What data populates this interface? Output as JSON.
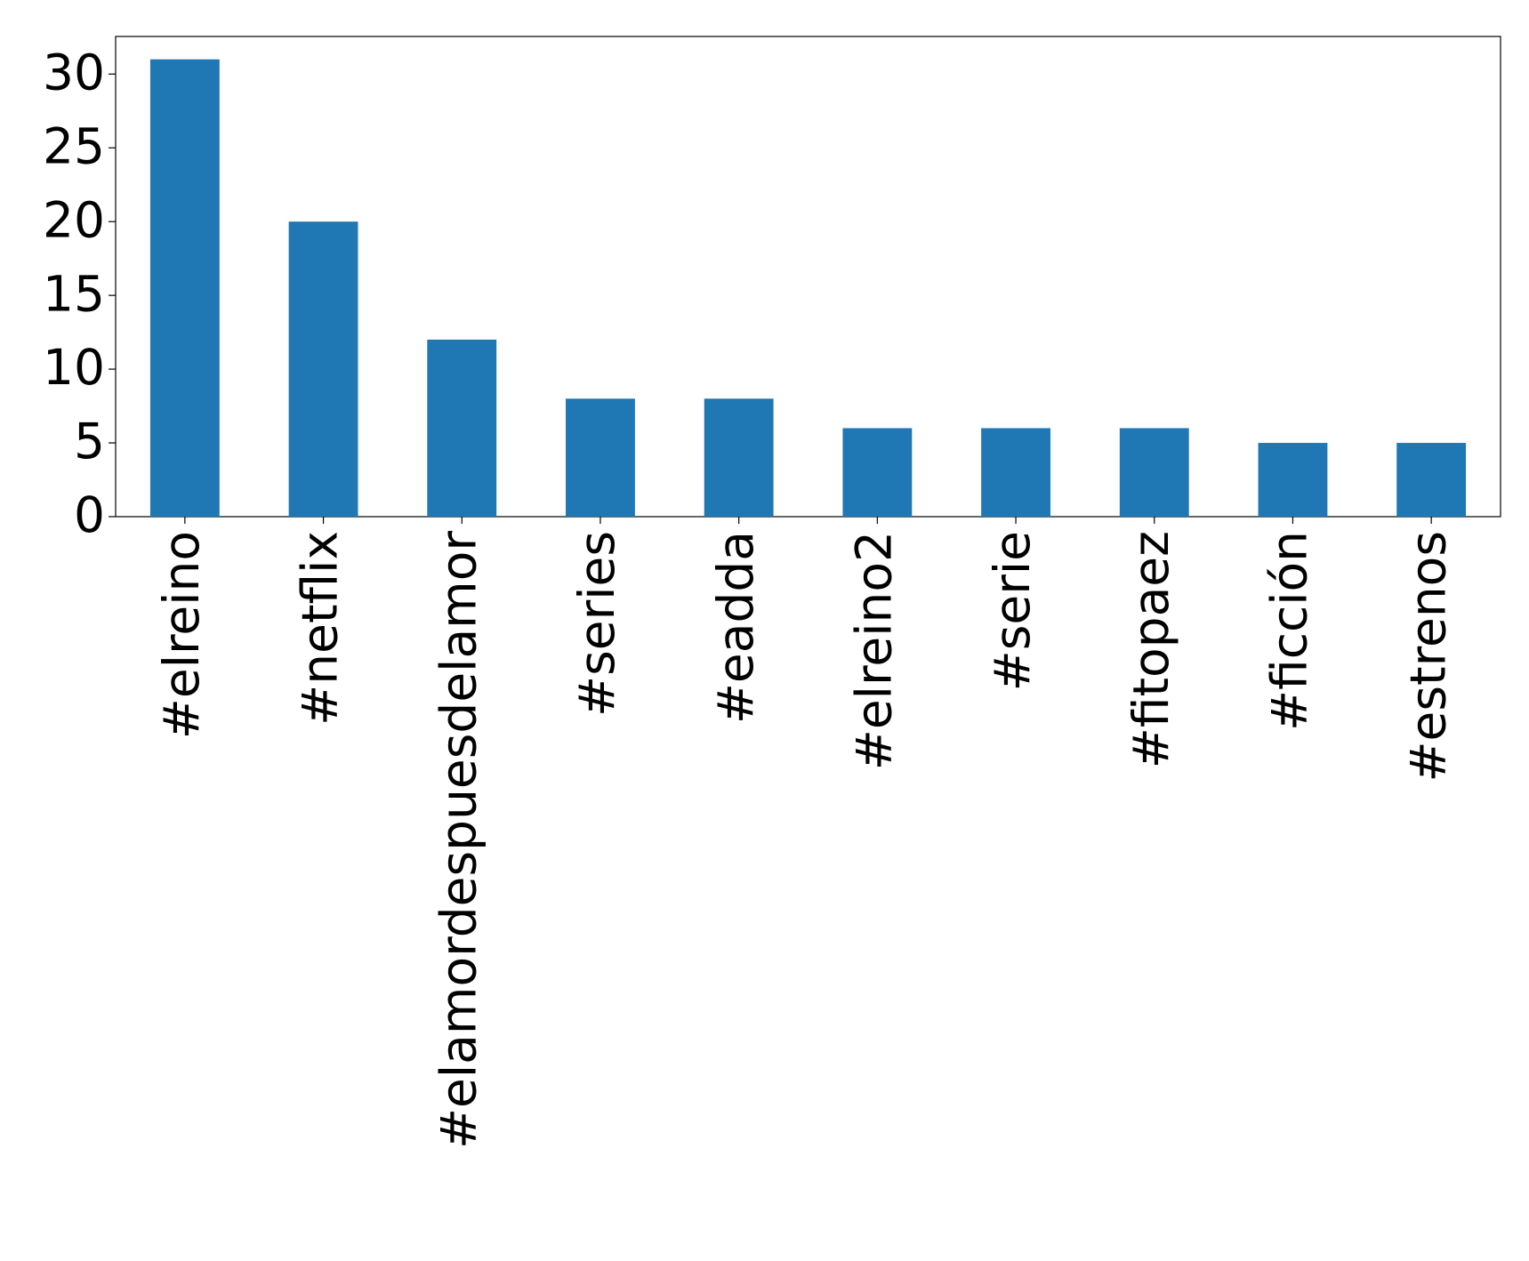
{
  "chart_data": {
    "type": "bar",
    "categories": [
      "#elreino",
      "#netflix",
      "#elamordespuesdelamor",
      "#series",
      "#eadda",
      "#elreino2",
      "#serie",
      "#fitopaez",
      "#ficción",
      "#estrenos"
    ],
    "values": [
      31,
      20,
      12,
      8,
      8,
      6,
      6,
      6,
      5,
      5
    ],
    "color": "#1f77b4",
    "ylim": [
      0,
      32.55
    ],
    "yticks": [
      0,
      5,
      10,
      15,
      20,
      25,
      30
    ],
    "grid": false
  }
}
